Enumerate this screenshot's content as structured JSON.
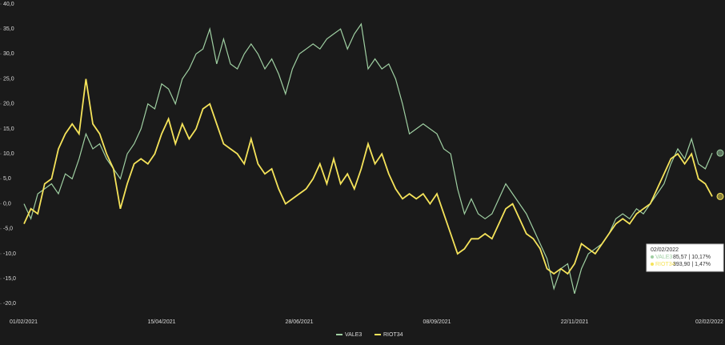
{
  "chart_data": {
    "type": "line",
    "categories": [
      "01/02/2021",
      null,
      null,
      null,
      null,
      null,
      null,
      null,
      null,
      null,
      null,
      null,
      null,
      null,
      null,
      null,
      null,
      null,
      null,
      null,
      "15/04/2021",
      null,
      null,
      null,
      null,
      null,
      null,
      null,
      null,
      null,
      null,
      null,
      null,
      null,
      null,
      null,
      null,
      null,
      null,
      null,
      "28/06/2021",
      null,
      null,
      null,
      null,
      null,
      null,
      null,
      null,
      null,
      null,
      null,
      null,
      null,
      null,
      null,
      null,
      null,
      null,
      null,
      "08/09/2021",
      null,
      null,
      null,
      null,
      null,
      null,
      null,
      null,
      null,
      null,
      null,
      null,
      null,
      null,
      null,
      null,
      null,
      null,
      null,
      "22/11/2021",
      null,
      null,
      null,
      null,
      null,
      null,
      null,
      null,
      null,
      null,
      null,
      null,
      null,
      null,
      null,
      null,
      null,
      null,
      null,
      "02/02/2022"
    ],
    "series": [
      {
        "name": "VALE3",
        "color": "#9fcfa2",
        "values": [
          0,
          -3,
          2,
          3,
          4,
          2,
          6,
          5,
          9,
          14,
          11,
          12,
          9,
          7,
          5,
          10,
          12,
          15,
          20,
          19,
          24,
          23,
          20,
          25,
          27,
          30,
          31,
          35,
          28,
          33,
          28,
          27,
          30,
          32,
          30,
          27,
          29,
          26,
          22,
          27,
          30,
          31,
          32,
          31,
          33,
          34,
          35,
          31,
          34,
          36,
          27,
          29,
          27,
          28,
          25,
          20,
          14,
          15,
          16,
          15,
          14,
          11,
          10,
          3,
          -2,
          1,
          -2,
          -3,
          -2,
          1,
          4,
          2,
          0,
          -2,
          -5,
          -8,
          -11,
          -17,
          -13,
          -12,
          -18,
          -13,
          -10,
          -9,
          -8,
          -6,
          -3,
          -2,
          -3,
          -1,
          -2,
          0,
          2,
          4,
          8,
          11,
          9,
          13,
          8,
          7,
          10.17
        ]
      },
      {
        "name": "RIOT34",
        "color": "#f5e35a",
        "values": [
          -4,
          -1,
          -2,
          4,
          5,
          11,
          14,
          16,
          14,
          25,
          16,
          14,
          10,
          7,
          -1,
          4,
          8,
          9,
          8,
          10,
          14,
          17,
          12,
          16,
          13,
          15,
          19,
          20,
          16,
          12,
          11,
          10,
          8,
          13,
          8,
          6,
          7,
          3,
          0,
          1,
          2,
          3,
          5,
          8,
          4,
          9,
          4,
          6,
          3,
          7,
          12,
          8,
          10,
          6,
          3,
          1,
          2,
          1,
          2,
          0,
          2,
          -2,
          -6,
          -10,
          -9,
          -7,
          -7,
          -6,
          -7,
          -4,
          -1,
          0,
          -3,
          -6,
          -7,
          -9,
          -13,
          -14,
          -13,
          -14,
          -12,
          -8,
          -9,
          -10,
          -8,
          -6,
          -4,
          -3,
          -4,
          -2,
          -1,
          0,
          3,
          6,
          9,
          10,
          8,
          10,
          5,
          4,
          1.47
        ]
      }
    ],
    "ylim": [
      -22.5,
      40
    ],
    "yticks": [
      {
        "value": -20,
        "label": "-20,0"
      },
      {
        "value": -15,
        "label": "-15,0"
      },
      {
        "value": -10,
        "label": "-10,0"
      },
      {
        "value": -5,
        "label": "-5,0"
      },
      {
        "value": 0,
        "label": "0,0"
      },
      {
        "value": 5,
        "label": "5,0"
      },
      {
        "value": 10,
        "label": "10,0"
      },
      {
        "value": 15,
        "label": "15,0"
      },
      {
        "value": 20,
        "label": "20,0"
      },
      {
        "value": 25,
        "label": "25,0"
      },
      {
        "value": 30,
        "label": "30,0"
      },
      {
        "value": 35,
        "label": "35,0"
      },
      {
        "value": 40,
        "label": "40,0"
      }
    ],
    "grid": false,
    "legend": "bottom",
    "tooltip": {
      "date": "02/02/2022",
      "lines": [
        {
          "name": "VALE3",
          "text": "85,57 | 10,17%"
        },
        {
          "name": "RIOT34",
          "text": "393,90 | 1,47%"
        }
      ]
    }
  }
}
